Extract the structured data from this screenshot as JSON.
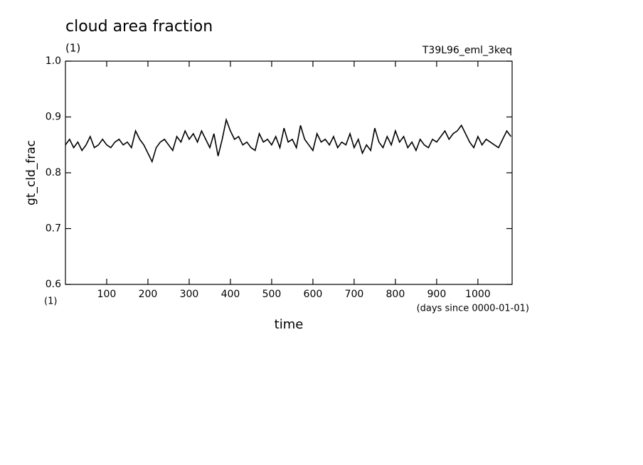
{
  "chart_data": {
    "type": "line",
    "title": "cloud area fraction",
    "subtitle": "(1)",
    "annotation": "T39L96_eml_3keq",
    "ylabel": "gt_cld_frac",
    "xlabel": "time",
    "x_units": "(days since 0000-01-01)",
    "x_unit_left": "(1)",
    "xlim": [
      0,
      1083
    ],
    "ylim": [
      0.6,
      1.0
    ],
    "xticks": [
      100,
      200,
      300,
      400,
      500,
      600,
      700,
      800,
      900,
      1000
    ],
    "yticks": [
      0.6,
      0.7,
      0.8,
      0.9,
      {
        "value": 1,
        "label": "1.0"
      }
    ],
    "grid": false,
    "series": [
      {
        "color": "#000000",
        "x": [
          0,
          10,
          20,
          30,
          40,
          50,
          60,
          70,
          80,
          90,
          100,
          110,
          120,
          130,
          140,
          150,
          160,
          170,
          180,
          190,
          200,
          210,
          220,
          230,
          240,
          250,
          260,
          270,
          280,
          290,
          300,
          310,
          320,
          330,
          340,
          350,
          360,
          370,
          380,
          390,
          400,
          410,
          420,
          430,
          440,
          450,
          460,
          470,
          480,
          490,
          500,
          510,
          520,
          530,
          540,
          550,
          560,
          570,
          580,
          590,
          600,
          610,
          620,
          630,
          640,
          650,
          660,
          670,
          680,
          690,
          700,
          710,
          720,
          730,
          740,
          750,
          760,
          770,
          780,
          790,
          800,
          810,
          820,
          830,
          840,
          850,
          860,
          870,
          880,
          890,
          900,
          910,
          920,
          930,
          940,
          950,
          960,
          970,
          980,
          990,
          1000,
          1010,
          1020,
          1030,
          1040,
          1050,
          1060,
          1070,
          1080
        ],
        "values": [
          0.85,
          0.86,
          0.845,
          0.855,
          0.84,
          0.85,
          0.865,
          0.845,
          0.85,
          0.86,
          0.85,
          0.845,
          0.855,
          0.86,
          0.85,
          0.855,
          0.845,
          0.875,
          0.86,
          0.85,
          0.835,
          0.82,
          0.845,
          0.855,
          0.86,
          0.85,
          0.84,
          0.865,
          0.855,
          0.875,
          0.86,
          0.87,
          0.855,
          0.875,
          0.86,
          0.845,
          0.87,
          0.83,
          0.86,
          0.895,
          0.875,
          0.86,
          0.865,
          0.85,
          0.855,
          0.845,
          0.84,
          0.87,
          0.855,
          0.86,
          0.85,
          0.865,
          0.845,
          0.88,
          0.855,
          0.86,
          0.845,
          0.885,
          0.86,
          0.85,
          0.84,
          0.87,
          0.855,
          0.86,
          0.85,
          0.865,
          0.845,
          0.855,
          0.85,
          0.87,
          0.845,
          0.86,
          0.835,
          0.85,
          0.84,
          0.88,
          0.855,
          0.845,
          0.865,
          0.85,
          0.875,
          0.855,
          0.865,
          0.845,
          0.855,
          0.84,
          0.86,
          0.85,
          0.845,
          0.86,
          0.855,
          0.865,
          0.875,
          0.86,
          0.87,
          0.875,
          0.885,
          0.87,
          0.855,
          0.845,
          0.865,
          0.85,
          0.86,
          0.855,
          0.85,
          0.845,
          0.86,
          0.875,
          0.865
        ]
      }
    ]
  }
}
